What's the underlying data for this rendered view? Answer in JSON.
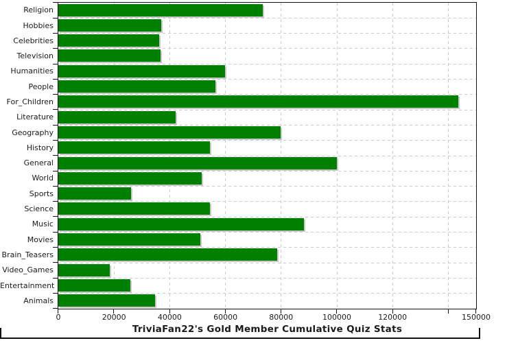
{
  "chart_data": {
    "type": "bar",
    "orientation": "horizontal",
    "title": "TriviaFan22's Gold Member Cumulative Quiz Stats",
    "categories": [
      "Religion",
      "Hobbies",
      "Celebrities",
      "Television",
      "Humanities",
      "People",
      "For_Children",
      "Literature",
      "Geography",
      "History",
      "General",
      "World",
      "Sports",
      "Science",
      "Music",
      "Movies",
      "Brain_Teasers",
      "Video_Games",
      "Entertainment",
      "Animals"
    ],
    "values": [
      73500,
      37000,
      36400,
      36800,
      60000,
      56400,
      143600,
      42200,
      80000,
      54500,
      100000,
      51500,
      26100,
      54600,
      88300,
      51000,
      78600,
      18500,
      26000,
      34800
    ],
    "xlabel": "",
    "ylabel": "",
    "xlim": [
      0,
      150000
    ],
    "x_ticks": [
      0,
      20000,
      40000,
      60000,
      80000,
      100000,
      120000,
      140000,
      150000
    ],
    "x_tick_labels": [
      "0",
      "20000",
      "40000",
      "60000",
      "80000",
      "100000",
      "120000",
      "",
      "150000"
    ],
    "grid": "dashed-both-axes",
    "legend": "none",
    "bar_color": "#008000",
    "bar_shadow_color": "#c8c8c8",
    "gridline_color": "#c8cdd4",
    "axis_color": "#111111"
  }
}
